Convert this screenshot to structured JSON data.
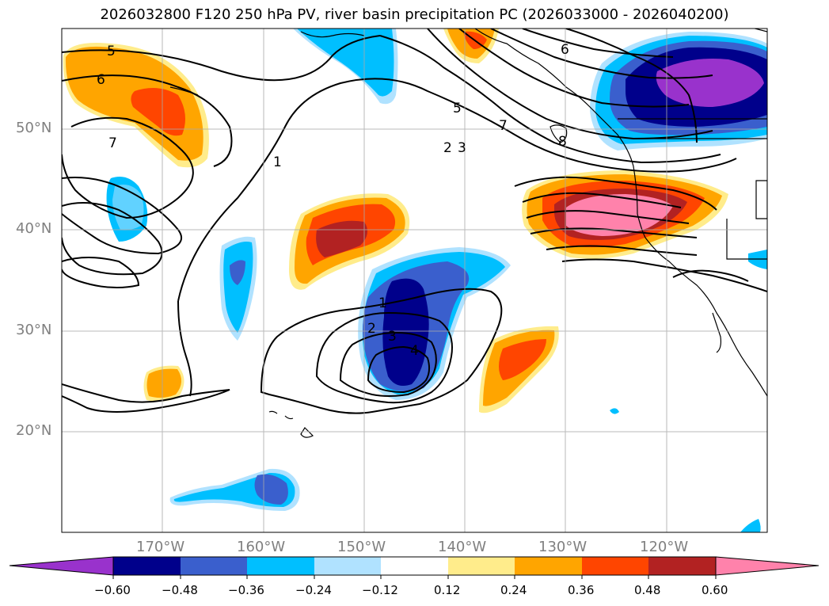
{
  "title": "2026032800 F120 250 hPa PV, river basin precipitation PC (2026033000 - 2026040200)",
  "lat_labels": [
    "50°N",
    "40°N",
    "30°N",
    "20°N"
  ],
  "lon_labels": [
    "170°W",
    "160°W",
    "150°W",
    "140°W",
    "130°W",
    "120°W"
  ],
  "colorbar": {
    "labels": [
      "−0.60",
      "−0.48",
      "−0.36",
      "−0.24",
      "−0.12",
      "0.12",
      "0.24",
      "0.36",
      "0.48",
      "0.60"
    ],
    "colors": [
      "#9932cc",
      "#00008b",
      "#3a5fcd",
      "#00bfff",
      "#b0e2ff",
      "#ffffff",
      "#ffec8b",
      "#ffa500",
      "#ff4500",
      "#b22222",
      "#ff82ab"
    ]
  },
  "contour_labels": [
    "5",
    "6",
    "7",
    "1",
    "6",
    "7",
    "5",
    "2",
    "3",
    "8",
    "1",
    "2",
    "3",
    "4"
  ]
}
